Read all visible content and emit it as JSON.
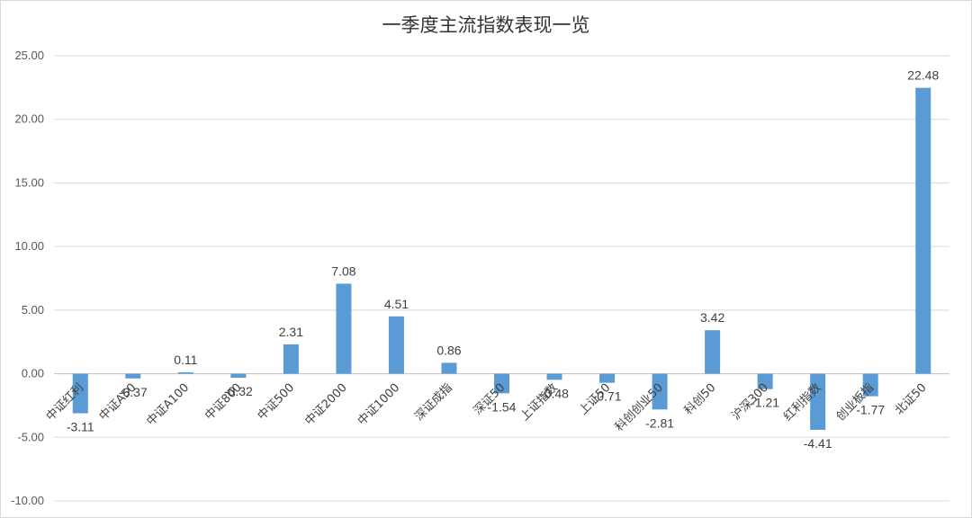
{
  "chart_data": {
    "type": "bar",
    "title": "一季度主流指数表现一览",
    "xlabel": "",
    "ylabel": "",
    "ylim": [
      -10,
      25
    ],
    "yticks": [
      "25.00",
      "20.00",
      "15.00",
      "10.00",
      "5.00",
      "0.00",
      "-5.00",
      "-10.00"
    ],
    "ytick_values": [
      25,
      20,
      15,
      10,
      5,
      0,
      -5,
      -10
    ],
    "grid": true,
    "legend": "none",
    "bar_color": "#5b9bd5",
    "categories": [
      "中证红利",
      "中证A50",
      "中证A100",
      "中证800",
      "中证500",
      "中证2000",
      "中证1000",
      "深证成指",
      "深证50",
      "上证指数",
      "上证50",
      "科创创业50",
      "科创50",
      "沪深300",
      "红利指数",
      "创业板指",
      "北证50"
    ],
    "values": [
      -3.11,
      -0.37,
      0.11,
      -0.32,
      2.31,
      7.08,
      4.51,
      0.86,
      -1.54,
      -0.48,
      -0.71,
      -2.81,
      3.42,
      -1.21,
      -4.41,
      -1.77,
      22.48
    ],
    "data_labels": [
      "-3.11",
      "-0.37",
      "0.11",
      "-0.32",
      "2.31",
      "7.08",
      "4.51",
      "0.86",
      "-1.54",
      "-0.48",
      "-0.71",
      "-2.81",
      "3.42",
      "-1.21",
      "-4.41",
      "-1.77",
      "22.48"
    ]
  }
}
